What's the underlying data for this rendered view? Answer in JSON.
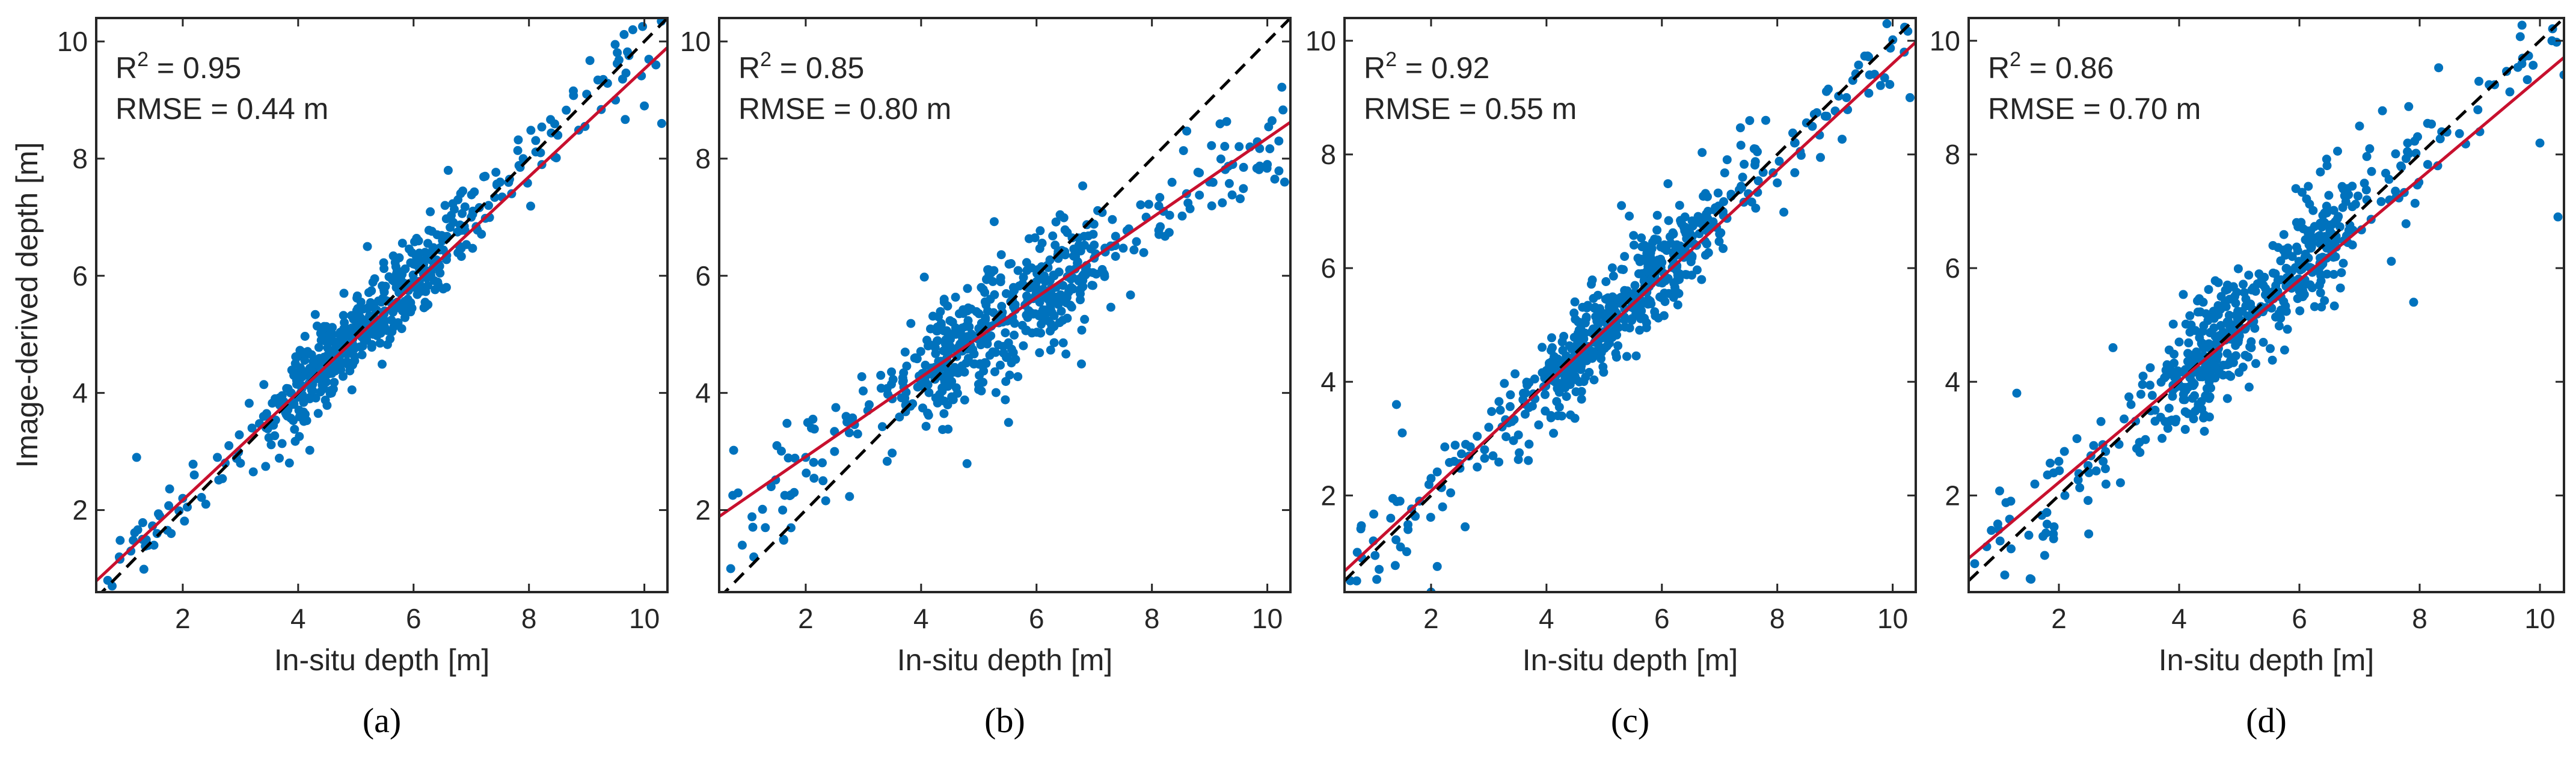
{
  "colors": {
    "points": "#0072BD",
    "fit_line": "#C8102E",
    "identity_line": "#000000",
    "axes": "#262626"
  },
  "shared_axes": {
    "xlabel": "In-situ depth [m]",
    "ylabel": "Image-derived depth [m]",
    "xlim": [
      0.5,
      10.4
    ],
    "xticks": [
      2,
      4,
      6,
      8,
      10
    ]
  },
  "chart_data": [
    {
      "type": "scatter",
      "panel": "a",
      "caption": "(a)",
      "stats": {
        "r2_prefix": "R",
        "r2_sup": "2",
        "r2_value": " = 0.95",
        "rmse": "RMSE = 0.44 m"
      },
      "xlabel": "In-situ depth [m]",
      "ylabel": "Image-derived depth [m]",
      "xlim": [
        0.5,
        10.4
      ],
      "ylim": [
        0.6,
        10.4
      ],
      "xticks": [
        2,
        4,
        6,
        8,
        10
      ],
      "yticks": [
        2,
        4,
        6,
        8,
        10
      ],
      "fit": {
        "slope": 0.92,
        "intercept": 0.33
      },
      "identity_line": true,
      "sample_points": [
        [
          0.7,
          0.8
        ],
        [
          0.9,
          1.2
        ],
        [
          1.1,
          1.3
        ],
        [
          1.3,
          1.5
        ],
        [
          1.2,
          2.9
        ],
        [
          1.5,
          1.4
        ],
        [
          1.6,
          1.9
        ],
        [
          1.8,
          1.6
        ],
        [
          2.0,
          2.2
        ],
        [
          2.2,
          2.6
        ],
        [
          2.4,
          2.1
        ],
        [
          2.6,
          2.9
        ],
        [
          2.8,
          3.1
        ],
        [
          3.0,
          2.8
        ],
        [
          3.2,
          3.4
        ],
        [
          3.4,
          3.6
        ],
        [
          3.6,
          3.9
        ],
        [
          3.8,
          3.8
        ],
        [
          4.0,
          4.2
        ],
        [
          4.1,
          4.6
        ],
        [
          4.2,
          3.9
        ],
        [
          4.3,
          4.5
        ],
        [
          4.4,
          4.9
        ],
        [
          4.5,
          4.4
        ],
        [
          4.6,
          5.0
        ],
        [
          4.7,
          4.6
        ],
        [
          4.8,
          5.2
        ],
        [
          4.9,
          4.7
        ],
        [
          5.0,
          5.1
        ],
        [
          5.2,
          6.5
        ],
        [
          5.3,
          5.0
        ],
        [
          5.5,
          5.4
        ],
        [
          5.7,
          5.8
        ],
        [
          5.9,
          5.6
        ],
        [
          6.0,
          6.2
        ],
        [
          6.1,
          5.9
        ],
        [
          6.2,
          6.4
        ],
        [
          6.3,
          6.0
        ],
        [
          6.5,
          6.6
        ],
        [
          6.6,
          7.8
        ],
        [
          6.8,
          6.5
        ],
        [
          7.0,
          7.0
        ],
        [
          7.3,
          7.2
        ],
        [
          7.5,
          7.6
        ],
        [
          7.7,
          7.4
        ],
        [
          7.9,
          8.0
        ],
        [
          8.2,
          8.1
        ],
        [
          8.5,
          8.4
        ],
        [
          9.0,
          9.1
        ],
        [
          9.5,
          9.0
        ],
        [
          9.8,
          10.2
        ],
        [
          10.0,
          8.9
        ],
        [
          10.2,
          9.6
        ],
        [
          10.3,
          8.6
        ]
      ]
    },
    {
      "type": "scatter",
      "panel": "b",
      "caption": "(b)",
      "stats": {
        "r2_prefix": "R",
        "r2_sup": "2",
        "r2_value": " = 0.85",
        "rmse": "RMSE = 0.80 m"
      },
      "xlabel": "In-situ depth [m]",
      "ylabel": "",
      "xlim": [
        0.5,
        10.4
      ],
      "ylim": [
        0.6,
        10.4
      ],
      "xticks": [
        2,
        4,
        6,
        8,
        10
      ],
      "yticks": [
        2,
        4,
        6,
        8,
        10
      ],
      "fit": {
        "slope": 0.68,
        "intercept": 1.55
      },
      "identity_line": true,
      "sample_points": [
        [
          0.7,
          1.0
        ],
        [
          0.9,
          1.4
        ],
        [
          1.1,
          1.2
        ],
        [
          1.3,
          1.7
        ],
        [
          1.4,
          2.4
        ],
        [
          1.5,
          3.1
        ],
        [
          1.6,
          2.0
        ],
        [
          1.8,
          2.3
        ],
        [
          2.0,
          2.9
        ],
        [
          2.1,
          3.4
        ],
        [
          2.3,
          2.5
        ],
        [
          2.5,
          3.0
        ],
        [
          2.7,
          3.6
        ],
        [
          2.9,
          3.3
        ],
        [
          3.1,
          3.8
        ],
        [
          3.3,
          4.3
        ],
        [
          3.5,
          3.9
        ],
        [
          3.7,
          4.1
        ],
        [
          3.9,
          4.6
        ],
        [
          4.1,
          4.9
        ],
        [
          4.2,
          4.4
        ],
        [
          4.3,
          5.3
        ],
        [
          4.4,
          5.6
        ],
        [
          4.5,
          4.8
        ],
        [
          4.6,
          5.0
        ],
        [
          4.8,
          5.4
        ],
        [
          5.0,
          5.1
        ],
        [
          5.2,
          5.6
        ],
        [
          5.4,
          5.3
        ],
        [
          5.6,
          5.8
        ],
        [
          5.8,
          5.5
        ],
        [
          6.0,
          5.9
        ],
        [
          6.2,
          5.6
        ],
        [
          6.4,
          5.2
        ],
        [
          6.6,
          5.8
        ],
        [
          6.8,
          6.0
        ],
        [
          7.0,
          6.3
        ],
        [
          7.3,
          6.5
        ],
        [
          7.6,
          6.8
        ],
        [
          7.9,
          7.0
        ],
        [
          8.2,
          7.1
        ],
        [
          8.6,
          7.4
        ],
        [
          9.0,
          7.6
        ],
        [
          9.4,
          7.9
        ],
        [
          9.7,
          8.2
        ],
        [
          10.0,
          7.9
        ],
        [
          10.3,
          7.6
        ],
        [
          10.2,
          8.3
        ]
      ]
    },
    {
      "type": "scatter",
      "panel": "c",
      "caption": "(c)",
      "stats": {
        "r2_prefix": "R",
        "r2_sup": "2",
        "r2_value": " = 0.92",
        "rmse": "RMSE = 0.55 m"
      },
      "xlabel": "In-situ depth [m]",
      "ylabel": "",
      "xlim": [
        0.5,
        10.4
      ],
      "ylim": [
        0.3,
        10.4
      ],
      "xticks": [
        2,
        4,
        6,
        8,
        10
      ],
      "yticks": [
        2,
        4,
        6,
        8,
        10
      ],
      "fit": {
        "slope": 0.94,
        "intercept": 0.2
      },
      "identity_line": true,
      "sample_points": [
        [
          0.6,
          0.5
        ],
        [
          0.8,
          0.9
        ],
        [
          1.0,
          1.2
        ],
        [
          1.1,
          0.7
        ],
        [
          1.3,
          1.6
        ],
        [
          1.4,
          3.6
        ],
        [
          1.5,
          3.1
        ],
        [
          1.6,
          1.4
        ],
        [
          1.8,
          1.9
        ],
        [
          2.0,
          2.3
        ],
        [
          2.0,
          0.3
        ],
        [
          2.2,
          1.8
        ],
        [
          2.4,
          2.6
        ],
        [
          2.6,
          2.9
        ],
        [
          2.8,
          2.5
        ],
        [
          3.0,
          3.2
        ],
        [
          3.2,
          3.5
        ],
        [
          3.4,
          3.3
        ],
        [
          3.6,
          3.8
        ],
        [
          3.8,
          3.7
        ],
        [
          4.0,
          4.2
        ],
        [
          4.1,
          4.6
        ],
        [
          4.2,
          3.9
        ],
        [
          4.3,
          4.8
        ],
        [
          4.4,
          4.3
        ],
        [
          4.5,
          5.1
        ],
        [
          4.6,
          4.6
        ],
        [
          4.7,
          5.3
        ],
        [
          4.8,
          4.9
        ],
        [
          5.0,
          5.2
        ],
        [
          5.2,
          4.5
        ],
        [
          5.3,
          7.1
        ],
        [
          5.4,
          5.6
        ],
        [
          5.6,
          5.9
        ],
        [
          5.8,
          6.2
        ],
        [
          6.0,
          6.1
        ],
        [
          6.2,
          6.6
        ],
        [
          6.3,
          5.8
        ],
        [
          6.4,
          6.9
        ],
        [
          6.6,
          6.4
        ],
        [
          6.8,
          7.0
        ],
        [
          7.0,
          6.6
        ],
        [
          7.2,
          7.3
        ],
        [
          7.4,
          7.6
        ],
        [
          7.6,
          8.1
        ],
        [
          7.8,
          8.6
        ],
        [
          8.0,
          7.5
        ],
        [
          8.3,
          8.2
        ],
        [
          9.2,
          9.0
        ],
        [
          9.6,
          9.4
        ],
        [
          9.9,
          10.3
        ],
        [
          10.2,
          9.8
        ],
        [
          10.3,
          9.0
        ]
      ]
    },
    {
      "type": "scatter",
      "panel": "d",
      "caption": "(d)",
      "stats": {
        "r2_prefix": "R",
        "r2_sup": "2",
        "r2_value": " = 0.86",
        "rmse": "RMSE = 0.70 m"
      },
      "xlabel": "In-situ depth [m]",
      "ylabel": "",
      "xlim": [
        0.5,
        10.4
      ],
      "ylim": [
        0.3,
        10.4
      ],
      "xticks": [
        2,
        4,
        6,
        8,
        10
      ],
      "yticks": [
        2,
        4,
        6,
        8,
        10
      ],
      "fit": {
        "slope": 0.89,
        "intercept": 0.45
      },
      "identity_line": true,
      "sample_points": [
        [
          0.6,
          0.8
        ],
        [
          0.8,
          1.1
        ],
        [
          1.0,
          1.4
        ],
        [
          1.1,
          0.6
        ],
        [
          1.2,
          1.9
        ],
        [
          1.3,
          3.8
        ],
        [
          1.5,
          1.3
        ],
        [
          1.6,
          2.2
        ],
        [
          1.8,
          1.7
        ],
        [
          2.0,
          2.6
        ],
        [
          2.1,
          2.0
        ],
        [
          2.3,
          3.0
        ],
        [
          2.5,
          2.4
        ],
        [
          2.7,
          3.3
        ],
        [
          2.9,
          4.6
        ],
        [
          3.0,
          2.9
        ],
        [
          3.2,
          3.6
        ],
        [
          3.4,
          4.1
        ],
        [
          3.6,
          3.5
        ],
        [
          3.8,
          4.3
        ],
        [
          4.0,
          4.7
        ],
        [
          4.1,
          3.9
        ],
        [
          4.2,
          5.0
        ],
        [
          4.3,
          4.4
        ],
        [
          4.4,
          5.4
        ],
        [
          4.5,
          4.0
        ],
        [
          4.6,
          4.8
        ],
        [
          4.7,
          5.5
        ],
        [
          4.8,
          4.5
        ],
        [
          5.0,
          5.1
        ],
        [
          5.2,
          4.6
        ],
        [
          5.4,
          5.7
        ],
        [
          5.6,
          5.9
        ],
        [
          5.8,
          6.3
        ],
        [
          6.0,
          5.6
        ],
        [
          6.1,
          6.5
        ],
        [
          6.2,
          6.0
        ],
        [
          6.4,
          6.8
        ],
        [
          6.6,
          6.2
        ],
        [
          6.8,
          7.4
        ],
        [
          7.0,
          8.5
        ],
        [
          7.2,
          7.7
        ],
        [
          7.5,
          7.2
        ],
        [
          7.8,
          8.2
        ],
        [
          7.9,
          5.4
        ],
        [
          8.3,
          7.8
        ],
        [
          9.0,
          8.4
        ],
        [
          9.5,
          9.1
        ],
        [
          10.0,
          8.2
        ],
        [
          10.2,
          10.0
        ],
        [
          10.3,
          6.9
        ],
        [
          10.4,
          9.4
        ]
      ]
    }
  ]
}
